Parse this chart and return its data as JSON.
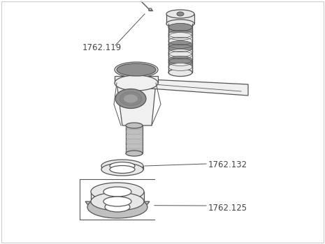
{
  "background_color": "#ffffff",
  "line_color": "#555555",
  "fill_light": "#e8e8e8",
  "fill_mid": "#c0c0c0",
  "fill_dark": "#909090",
  "fill_chrome": "#f0f0f0",
  "fill_white": "#ffffff",
  "label_color": "#444444",
  "label_fontsize": 8.5,
  "border_color": "#cccccc",
  "screw_color": "#999999"
}
